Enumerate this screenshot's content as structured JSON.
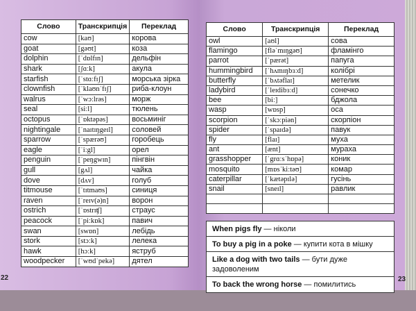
{
  "left_page": {
    "page_number": "22",
    "headers": [
      "Слово",
      "Транскрипція",
      "Переклад"
    ],
    "rows": [
      [
        "cow",
        "[kaʊ]",
        "корова"
      ],
      [
        "goat",
        "[gəʊt]",
        "коза"
      ],
      [
        "dolphin",
        "[ˈdɒlfɪn]",
        "дельфін"
      ],
      [
        "shark",
        "[ʃɑːk]",
        "акула"
      ],
      [
        "starfish",
        "[ˈstɑːfɪʃ]",
        "морська зірка"
      ],
      [
        "clownfish",
        "[ˈklaʊnˈfɪʃ]",
        "риба-клоун"
      ],
      [
        "walrus",
        "[ˈwɔːlrəs]",
        "морж"
      ],
      [
        "seal",
        "[siːl]",
        "тюлень"
      ],
      [
        "octopus",
        "[ˈɒktəpəs]",
        "восьминіг"
      ],
      [
        "nightingale",
        "[ˈnaɪtɪŋgeɪl]",
        "соловей"
      ],
      [
        "sparrow",
        "[ˈspærəʊ]",
        "горобець"
      ],
      [
        "eagle",
        "[ˈiːgl]",
        "орел"
      ],
      [
        "penguin",
        "[ˈpeŋgwɪn]",
        "пінгвін"
      ],
      [
        "gull",
        "[gʌl]",
        "чайка"
      ],
      [
        "dove",
        "[dʌv]",
        "голуб"
      ],
      [
        "titmouse",
        "[ˈtɪtmaʊs]",
        "синиця"
      ],
      [
        "raven",
        "[ˈreɪv(ə)n]",
        "ворон"
      ],
      [
        "ostrich",
        "[ˈɒstrɪʧ]",
        "страус"
      ],
      [
        "peacock",
        "[ˈpiːkɒk]",
        "павич"
      ],
      [
        "swan",
        "[swɒn]",
        "лебідь"
      ],
      [
        "stork",
        "[stɔːk]",
        "лелека"
      ],
      [
        "hawk",
        "[hɔːk]",
        "яструб"
      ],
      [
        "woodpecker",
        "[ˈwʊdˈpekə]",
        "дятел"
      ]
    ]
  },
  "right_page": {
    "page_number": "23",
    "headers": [
      "Слово",
      "Транскрипція",
      "Переклад"
    ],
    "rows": [
      [
        "owl",
        "[aʊl]",
        "сова"
      ],
      [
        "flamingo",
        "[fləˈmɪŋgəʊ]",
        "фламінго"
      ],
      [
        "parrot",
        "[ˈpærət]",
        "папуга"
      ],
      [
        "hummingbird",
        "[ˈhʌmɪŋbɜːd]",
        "колібрі"
      ],
      [
        "butterfly",
        "[ˈbʌtəflaɪ]",
        "метелик"
      ],
      [
        "ladybird",
        "[ˈleɪdibɜːd]",
        "сонечко"
      ],
      [
        "bee",
        "[biː]",
        "бджола"
      ],
      [
        "wasp",
        "[wɒsp]",
        "оса"
      ],
      [
        "scorpion",
        "[ˈskɔːpiən]",
        "скорпіон"
      ],
      [
        "spider",
        "[ˈspaɪdə]",
        "павук"
      ],
      [
        "fly",
        "[flaɪ]",
        "муха"
      ],
      [
        "ant",
        "[ænt]",
        "мураха"
      ],
      [
        "grasshopper",
        "[ˈgrɑːsˈhɒpə]",
        "коник"
      ],
      [
        "mosquito",
        "[mɒsˈkiːtəʊ]",
        "комар"
      ],
      [
        "caterpillar",
        "[ˈkætəpɪlə]",
        "гусінь"
      ],
      [
        "snail",
        "[sneɪl]",
        "равлик"
      ],
      [
        "",
        "",
        ""
      ],
      [
        "",
        "",
        ""
      ]
    ],
    "idioms": [
      {
        "en": "When pigs fly",
        "uk": "ніколи"
      },
      {
        "en": "To buy a pig in a poke",
        "uk": "купити кота в мішку"
      },
      {
        "en": "Like a dog with two tails",
        "uk": "бути дуже задоволеним"
      },
      {
        "en": "To back the wrong horse",
        "uk": "помилитись"
      }
    ]
  }
}
